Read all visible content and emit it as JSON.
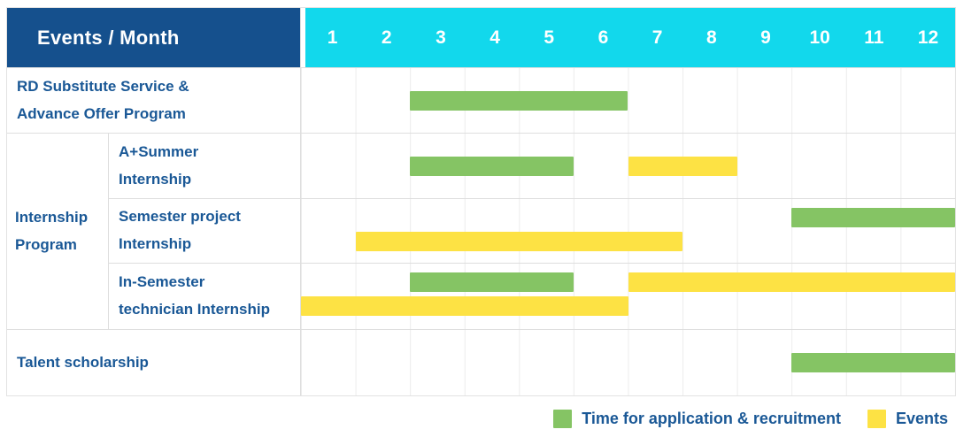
{
  "header": {
    "title": "Events / Month",
    "months": [
      "1",
      "2",
      "3",
      "4",
      "5",
      "6",
      "7",
      "8",
      "9",
      "10",
      "11",
      "12"
    ]
  },
  "rows": [
    {
      "label_lines": [
        "RD Substitute Service &",
        "Advance Offer Program"
      ],
      "full_width": true,
      "bars": [
        {
          "color": "green",
          "start_month": 3,
          "end_month": 6,
          "lane": "center"
        }
      ]
    },
    {
      "label_lines": [
        "A+Summer",
        "Internship"
      ],
      "full_width": false,
      "group": {
        "lines": [
          "Internship",
          "Program"
        ],
        "rowspan": 3
      },
      "bars": [
        {
          "color": "green",
          "start_month": 3,
          "end_month": 5,
          "lane": "center"
        },
        {
          "color": "yellow",
          "start_month": 7,
          "end_month": 8,
          "lane": "center"
        }
      ]
    },
    {
      "label_lines": [
        "Semester project",
        "Internship"
      ],
      "full_width": false,
      "bars": [
        {
          "color": "green",
          "start_month": 10,
          "end_month": 12,
          "lane": "top"
        },
        {
          "color": "yellow",
          "start_month": 2,
          "end_month": 7,
          "lane": "bottom"
        }
      ]
    },
    {
      "label_lines": [
        "In-Semester",
        "technician Internship"
      ],
      "full_width": false,
      "bars": [
        {
          "color": "green",
          "start_month": 3,
          "end_month": 5,
          "lane": "top"
        },
        {
          "color": "yellow",
          "start_month": 7,
          "end_month": 12,
          "lane": "top"
        },
        {
          "color": "yellow",
          "start_month": 1,
          "end_month": 6,
          "lane": "bottom"
        }
      ]
    },
    {
      "label_lines": [
        "Talent scholarship"
      ],
      "full_width": true,
      "bars": [
        {
          "color": "green",
          "start_month": 10,
          "end_month": 12,
          "lane": "center"
        }
      ]
    }
  ],
  "legend": [
    {
      "color": "green",
      "label": "Time for application & recruitment"
    },
    {
      "color": "yellow",
      "label": "Events"
    }
  ],
  "colors": {
    "green": "#85C464",
    "yellow": "#FDE244",
    "header_blue": "#15508D",
    "header_cyan": "#12D8EC",
    "text_blue": "#1A5896",
    "grid_line": "#ECECEC"
  },
  "chart_data": {
    "type": "gantt",
    "title": "Events / Month",
    "x": {
      "label": "Month",
      "ticks": [
        1,
        2,
        3,
        4,
        5,
        6,
        7,
        8,
        9,
        10,
        11,
        12
      ],
      "range": [
        1,
        12
      ],
      "grid": true
    },
    "legend_position": "bottom-right",
    "series_legend": [
      {
        "name": "Time for application & recruitment",
        "color": "#85C464"
      },
      {
        "name": "Events",
        "color": "#FDE244"
      }
    ],
    "tasks": [
      {
        "group": null,
        "name": "RD Substitute Service & Advance Offer Program",
        "bars": [
          {
            "series": "Time for application & recruitment",
            "start_month": 3,
            "end_month": 6
          }
        ]
      },
      {
        "group": "Internship Program",
        "name": "A+Summer Internship",
        "bars": [
          {
            "series": "Time for application & recruitment",
            "start_month": 3,
            "end_month": 5
          },
          {
            "series": "Events",
            "start_month": 7,
            "end_month": 8
          }
        ]
      },
      {
        "group": "Internship Program",
        "name": "Semester project Internship",
        "bars": [
          {
            "series": "Time for application & recruitment",
            "start_month": 10,
            "end_month": 12
          },
          {
            "series": "Events",
            "start_month": 2,
            "end_month": 7
          }
        ]
      },
      {
        "group": "Internship Program",
        "name": "In-Semester technician Internship",
        "bars": [
          {
            "series": "Time for application & recruitment",
            "start_month": 3,
            "end_month": 5
          },
          {
            "series": "Events",
            "start_month": 7,
            "end_month": 12
          },
          {
            "series": "Events",
            "start_month": 1,
            "end_month": 6
          }
        ]
      },
      {
        "group": null,
        "name": "Talent scholarship",
        "bars": [
          {
            "series": "Time for application & recruitment",
            "start_month": 10,
            "end_month": 12
          }
        ]
      }
    ]
  }
}
